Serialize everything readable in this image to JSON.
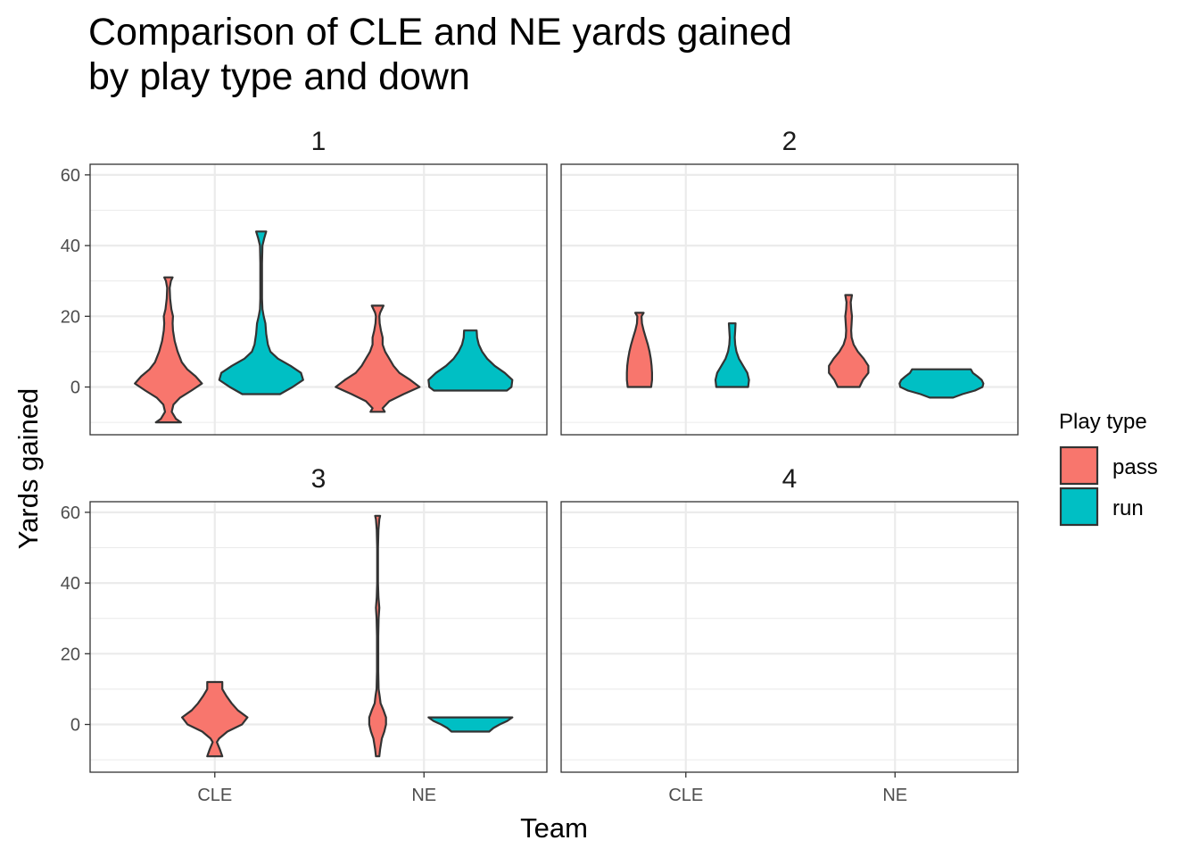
{
  "title_lines": [
    "Comparison of CLE and NE yards gained",
    "by play type and down"
  ],
  "chart_data": {
    "type": "violin",
    "title": "Comparison of CLE and NE yards gained by play type and down",
    "xlabel": "Team",
    "ylabel": "Yards gained",
    "categories": [
      "CLE",
      "NE"
    ],
    "ylim": [
      -13.5,
      63
    ],
    "y_ticks": [
      0,
      20,
      40,
      60
    ],
    "grid": true,
    "legend": {
      "title": "Play type",
      "placement": "right",
      "entries": [
        {
          "name": "pass",
          "color": "#F8766D"
        },
        {
          "name": "run",
          "color": "#00BFC4"
        }
      ]
    },
    "facets": [
      {
        "label": "1",
        "violins": [
          {
            "team": "CLE",
            "play": "pass",
            "ymin": -10,
            "ymax": 31,
            "profile": [
              [
                -10,
                0.3
              ],
              [
                -9,
                0.18
              ],
              [
                -7,
                0.08
              ],
              [
                -5,
                0.12
              ],
              [
                -3,
                0.28
              ],
              [
                -1,
                0.55
              ],
              [
                1,
                0.8
              ],
              [
                3,
                0.65
              ],
              [
                5,
                0.45
              ],
              [
                7,
                0.32
              ],
              [
                10,
                0.22
              ],
              [
                13,
                0.15
              ],
              [
                16,
                0.11
              ],
              [
                18,
                0.1
              ],
              [
                20,
                0.11
              ],
              [
                22,
                0.07
              ],
              [
                25,
                0.04
              ],
              [
                28,
                0.03
              ],
              [
                30,
                0.06
              ],
              [
                31,
                0.1
              ]
            ]
          },
          {
            "team": "CLE",
            "play": "run",
            "ymin": -2,
            "ymax": 44,
            "profile": [
              [
                -2,
                0.45
              ],
              [
                0,
                0.75
              ],
              [
                2,
                1.0
              ],
              [
                4,
                0.95
              ],
              [
                6,
                0.7
              ],
              [
                8,
                0.4
              ],
              [
                10,
                0.22
              ],
              [
                12,
                0.16
              ],
              [
                15,
                0.12
              ],
              [
                18,
                0.1
              ],
              [
                20,
                0.06
              ],
              [
                22,
                0.03
              ],
              [
                25,
                0.02
              ],
              [
                30,
                0.02
              ],
              [
                35,
                0.02
              ],
              [
                40,
                0.03
              ],
              [
                42,
                0.07
              ],
              [
                44,
                0.12
              ]
            ]
          },
          {
            "team": "NE",
            "play": "pass",
            "ymin": -7,
            "ymax": 23,
            "profile": [
              [
                -7,
                0.17
              ],
              [
                -6,
                0.12
              ],
              [
                -4,
                0.28
              ],
              [
                -2,
                0.62
              ],
              [
                0,
                1.0
              ],
              [
                2,
                0.78
              ],
              [
                4,
                0.52
              ],
              [
                6,
                0.38
              ],
              [
                8,
                0.28
              ],
              [
                10,
                0.18
              ],
              [
                12,
                0.12
              ],
              [
                14,
                0.12
              ],
              [
                16,
                0.08
              ],
              [
                18,
                0.05
              ],
              [
                20,
                0.04
              ],
              [
                21,
                0.06
              ],
              [
                23,
                0.14
              ]
            ]
          },
          {
            "team": "NE",
            "play": "run",
            "ymin": -1,
            "ymax": 16,
            "profile": [
              [
                -1,
                0.87
              ],
              [
                0,
                0.98
              ],
              [
                2,
                1.0
              ],
              [
                4,
                0.82
              ],
              [
                6,
                0.58
              ],
              [
                8,
                0.4
              ],
              [
                10,
                0.28
              ],
              [
                12,
                0.2
              ],
              [
                14,
                0.16
              ],
              [
                16,
                0.15
              ]
            ]
          }
        ]
      },
      {
        "label": "2",
        "violins": [
          {
            "team": "CLE",
            "play": "pass",
            "ymin": 0,
            "ymax": 21,
            "profile": [
              [
                0,
                0.28
              ],
              [
                2,
                0.3
              ],
              [
                4,
                0.3
              ],
              [
                6,
                0.29
              ],
              [
                8,
                0.27
              ],
              [
                10,
                0.24
              ],
              [
                12,
                0.2
              ],
              [
                14,
                0.15
              ],
              [
                16,
                0.1
              ],
              [
                18,
                0.06
              ],
              [
                20,
                0.05
              ],
              [
                21,
                0.1
              ]
            ]
          },
          {
            "team": "CLE",
            "play": "run",
            "ymin": 0,
            "ymax": 18,
            "profile": [
              [
                0,
                0.38
              ],
              [
                2,
                0.4
              ],
              [
                4,
                0.36
              ],
              [
                6,
                0.26
              ],
              [
                8,
                0.16
              ],
              [
                10,
                0.1
              ],
              [
                12,
                0.07
              ],
              [
                14,
                0.06
              ],
              [
                16,
                0.07
              ],
              [
                18,
                0.08
              ]
            ]
          },
          {
            "team": "NE",
            "play": "pass",
            "ymin": 0,
            "ymax": 26,
            "profile": [
              [
                0,
                0.26
              ],
              [
                2,
                0.34
              ],
              [
                4,
                0.47
              ],
              [
                6,
                0.47
              ],
              [
                8,
                0.36
              ],
              [
                10,
                0.22
              ],
              [
                12,
                0.12
              ],
              [
                14,
                0.07
              ],
              [
                16,
                0.06
              ],
              [
                18,
                0.07
              ],
              [
                20,
                0.08
              ],
              [
                22,
                0.06
              ],
              [
                24,
                0.05
              ],
              [
                26,
                0.08
              ]
            ]
          },
          {
            "team": "NE",
            "play": "run",
            "ymin": -3,
            "ymax": 5,
            "profile": [
              [
                -3,
                0.28
              ],
              [
                -2,
                0.5
              ],
              [
                -1,
                0.8
              ],
              [
                0,
                0.98
              ],
              [
                1,
                1.0
              ],
              [
                2,
                0.96
              ],
              [
                3,
                0.86
              ],
              [
                4,
                0.75
              ],
              [
                5,
                0.7
              ]
            ]
          }
        ]
      },
      {
        "label": "3",
        "violins": [
          {
            "team": "CLE",
            "play": "pass",
            "ymin": -9,
            "ymax": 12,
            "profile": [
              [
                -9,
                0.18
              ],
              [
                -7,
                0.12
              ],
              [
                -5,
                0.05
              ],
              [
                -4,
                0.1
              ],
              [
                -2,
                0.3
              ],
              [
                0,
                0.65
              ],
              [
                2,
                0.78
              ],
              [
                4,
                0.55
              ],
              [
                6,
                0.4
              ],
              [
                8,
                0.28
              ],
              [
                10,
                0.18
              ],
              [
                12,
                0.18
              ]
            ]
          },
          {
            "team": "NE",
            "play": "pass",
            "ymin": -9,
            "ymax": 59,
            "profile": [
              [
                -9,
                0.04
              ],
              [
                -7,
                0.06
              ],
              [
                -4,
                0.1
              ],
              [
                -2,
                0.16
              ],
              [
                0,
                0.2
              ],
              [
                2,
                0.2
              ],
              [
                4,
                0.14
              ],
              [
                6,
                0.07
              ],
              [
                8,
                0.05
              ],
              [
                10,
                0.025
              ],
              [
                15,
                0.015
              ],
              [
                25,
                0.015
              ],
              [
                30,
                0.025
              ],
              [
                33,
                0.04
              ],
              [
                36,
                0.02
              ],
              [
                40,
                0.01
              ],
              [
                50,
                0.01
              ],
              [
                55,
                0.02
              ],
              [
                58,
                0.04
              ],
              [
                59,
                0.06
              ]
            ]
          },
          {
            "team": "NE",
            "play": "run",
            "ymin": -2,
            "ymax": 2,
            "profile": [
              [
                -2,
                0.45
              ],
              [
                -1,
                0.55
              ],
              [
                0,
                0.7
              ],
              [
                1,
                0.88
              ],
              [
                2,
                1.0
              ]
            ]
          }
        ]
      },
      {
        "label": "4",
        "violins": []
      }
    ]
  }
}
